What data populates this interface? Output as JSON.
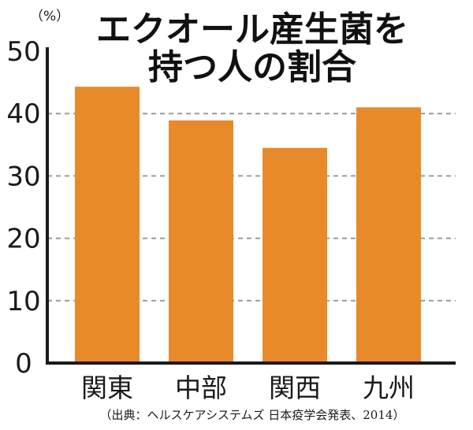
{
  "chart_data": {
    "type": "bar",
    "title_lines": [
      "エクオール産生菌を",
      "持つ人の割合"
    ],
    "unit_label": "（%）",
    "categories": [
      "関東",
      "中部",
      "関西",
      "九州"
    ],
    "values": [
      44.3,
      38.9,
      34.5,
      41.0
    ],
    "ylim": [
      0,
      50
    ],
    "yticks": [
      "0",
      "10",
      "20",
      "30",
      "40",
      "50"
    ],
    "ytick_values": [
      0,
      10,
      20,
      30,
      40,
      50
    ],
    "grid": "dashed horizontal at 10, 20, 30, 40",
    "source": "（出典：ヘルスケアシステムズ 日本疫学会発表、2014）",
    "colors": {
      "bar": "#E8892A",
      "axis": "#1a1a1a",
      "grid": "#9a9a9a",
      "text": "#1a1a1a"
    }
  }
}
